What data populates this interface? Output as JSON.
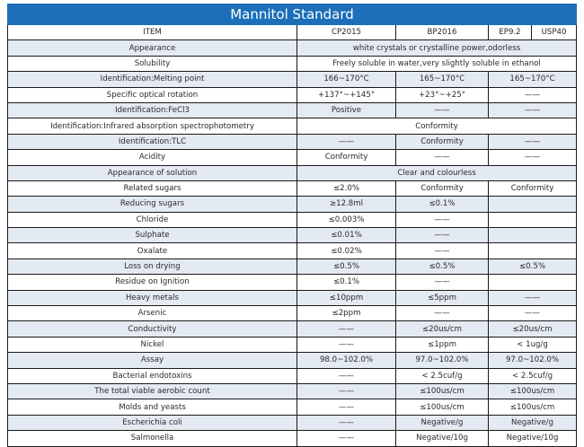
{
  "title": "Mannitol Standard",
  "headers": {
    "item": "ITEM",
    "cp": "CP2015",
    "bp": "BP2016",
    "ep": "EP9.2",
    "usp": "USP40"
  },
  "rows": [
    {
      "item": "Appearance",
      "span": "white crystals or crystalline power,odorless"
    },
    {
      "item": "Solubility",
      "span": "Freely soluble in water,very slightly soluble in ethanol"
    },
    {
      "item": "Identification:Melting point",
      "cp": "166~170°C",
      "bp": "165~170°C",
      "ep": "165~170°C"
    },
    {
      "item": "Specific optical rotation",
      "cp": "+137°~+145°",
      "bp": "+23°~+25°",
      "ep": "——"
    },
    {
      "item": "Identification:FeCl3",
      "cp": "Positive",
      "bp": "——",
      "ep": "——"
    },
    {
      "item": "Identification:Infrared absorption spectrophotometry",
      "span": "Conformity"
    },
    {
      "item": "Identification:TLC",
      "cp": "——",
      "bp": "Conformity",
      "ep": "——"
    },
    {
      "item": "Acidity",
      "cp": "Conformity",
      "bp": "——",
      "ep": "——"
    },
    {
      "item": "Appearance of solution",
      "span": "Clear and colourless"
    },
    {
      "item": "Related sugars",
      "cp": "≤2.0%",
      "bp": "Conformity",
      "ep": "Conformity"
    },
    {
      "item": "Reducing sugars",
      "cp": "≥12.8ml",
      "bp": "≤0.1%",
      "ep": ""
    },
    {
      "item": "Chloride",
      "cp": "≤0.003%",
      "bp": "——",
      "ep": ""
    },
    {
      "item": "Sulphate",
      "cp": "≤0.01%",
      "bp": "——",
      "ep": ""
    },
    {
      "item": "Oxalate",
      "cp": "≤0.02%",
      "bp": "——",
      "ep": ""
    },
    {
      "item": "Loss on drying",
      "cp": "≤0.5%",
      "bp": "≤0.5%",
      "ep": "≤0.5%"
    },
    {
      "item": "Residue on Ignition",
      "cp": "≤0.1%",
      "bp": "——",
      "ep": ""
    },
    {
      "item": "Heavy metals",
      "cp": "≤10ppm",
      "bp": "≤5ppm",
      "ep": "——"
    },
    {
      "item": "Arsenic",
      "cp": "≤2ppm",
      "bp": "——",
      "ep": "——"
    },
    {
      "item": "Conductivity",
      "cp": "——",
      "bp": "≤20us/cm",
      "ep": "≤20us/cm"
    },
    {
      "item": "Nickel",
      "cp": "——",
      "bp": "≤1ppm",
      "ep": "< 1ug/g"
    },
    {
      "item": "Assay",
      "cp": "98.0~102.0%",
      "bp": "97.0~102.0%",
      "ep": "97.0~102.0%"
    },
    {
      "item": "Bacterial endotoxins",
      "cp": "——",
      "bp": "< 2.5cuf/g",
      "ep": "< 2.5cuf/g"
    },
    {
      "item": "The total viable aerobic count",
      "cp": "——",
      "bp": "≤100us/cm",
      "ep": "≤100us/cm"
    },
    {
      "item": "Molds and yeasts",
      "cp": "——",
      "bp": "≤100us/cm",
      "ep": "≤100us/cm"
    },
    {
      "item": "Escherichia coli",
      "cp": "——",
      "bp": "Negative/g",
      "ep": "Negative/g"
    },
    {
      "item": "Salmonella",
      "cp": "——",
      "bp": "Negative/10g",
      "ep": "Negative/10g"
    }
  ],
  "colors": {
    "title_bg": "#1c6fb8",
    "stripe": "#e4eaf2"
  }
}
